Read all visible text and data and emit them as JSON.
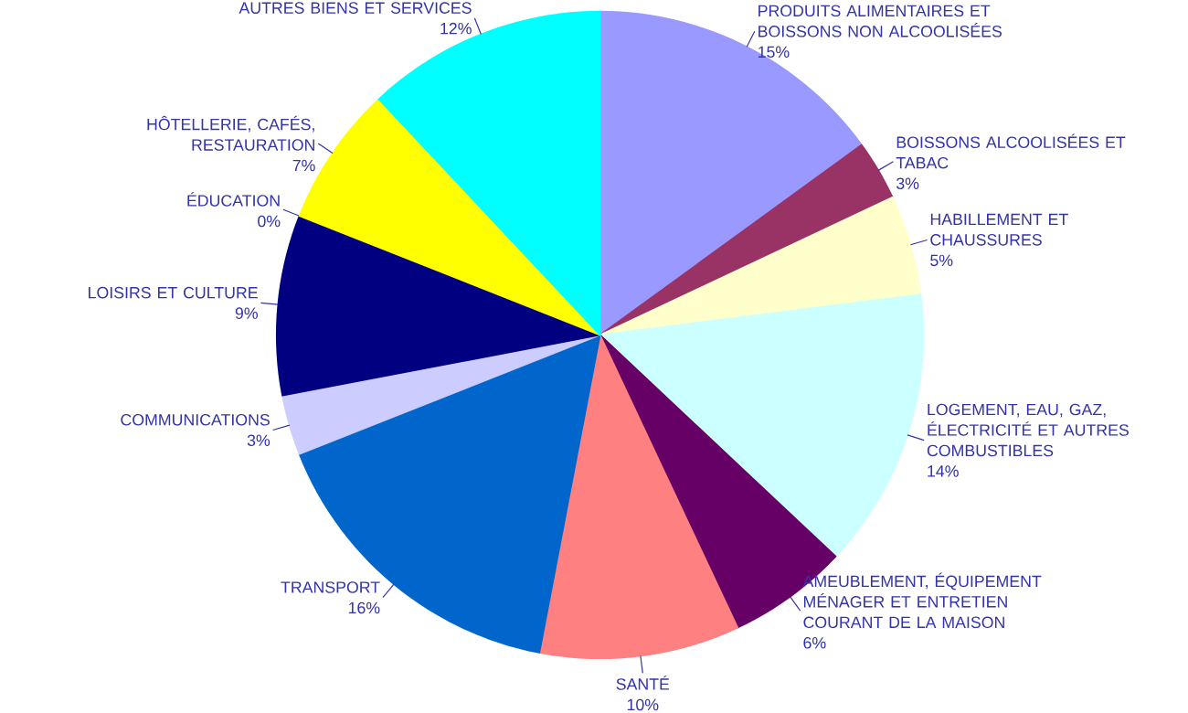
{
  "chart_data": {
    "type": "pie",
    "categories": [
      "PRODUITS ALIMENTAIRES ET BOISSONS NON ALCOOLISÉES",
      "BOISSONS ALCOOLISÉES ET TABAC",
      "HABILLEMENT ET CHAUSSURES",
      "LOGEMENT, EAU, GAZ, ÉLECTRICITÉ ET AUTRES COMBUSTIBLES",
      "AMEUBLEMENT, ÉQUIPEMENT MÉNAGER ET ENTRETIEN COURANT DE LA MAISON",
      "SANTÉ",
      "TRANSPORT",
      "COMMUNICATIONS",
      "LOISIRS ET CULTURE",
      "ÉDUCATION",
      "HÔTELLERIE, CAFÉS, RESTAURATION",
      "AUTRES BIENS ET SERVICES"
    ],
    "values": [
      15,
      3,
      5,
      14,
      6,
      10,
      16,
      3,
      9,
      0,
      7,
      12
    ],
    "value_labels": [
      "15%",
      "3%",
      "5%",
      "14%",
      "6%",
      "10%",
      "16%",
      "3%",
      "9%",
      "0%",
      "7%",
      "12%"
    ],
    "colors": [
      "#9999ff",
      "#993366",
      "#ffffcc",
      "#ccffff",
      "#660066",
      "#ff8080",
      "#0066cc",
      "#ccccff",
      "#000080",
      "#cc3300",
      "#ffff00",
      "#00ffff"
    ]
  }
}
